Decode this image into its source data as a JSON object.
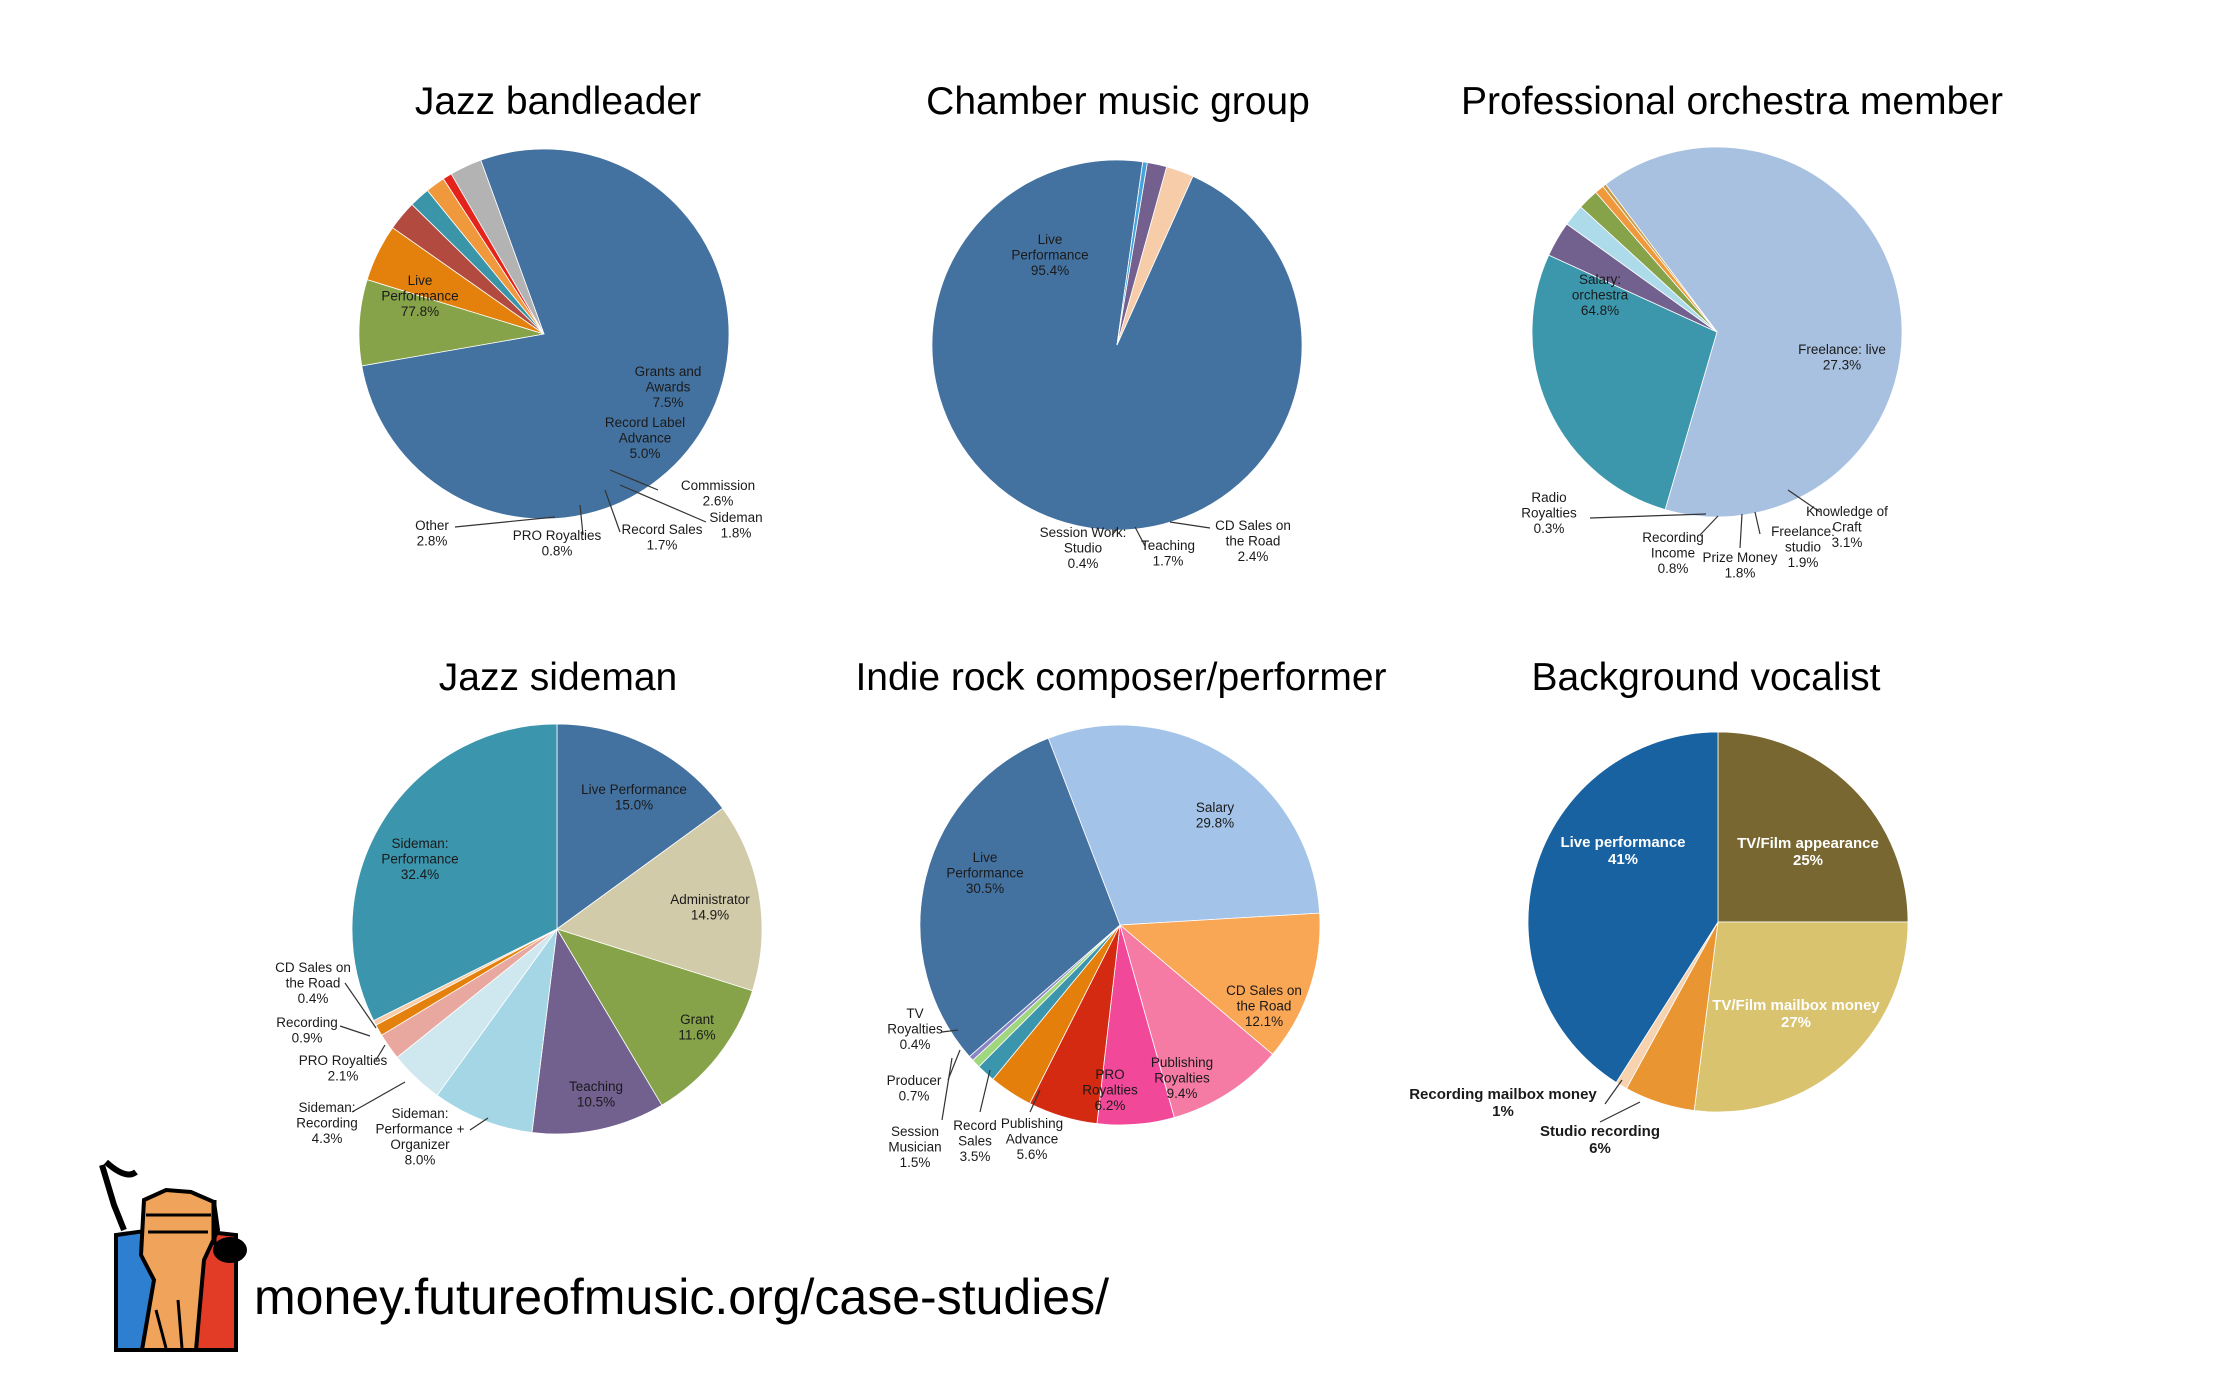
{
  "footer": {
    "url": "money.futureofmusic.org/case-studies/"
  },
  "logo": {
    "icon": "raised-fist-music-note-icon"
  },
  "chart_data": [
    {
      "type": "pie",
      "title": "Jazz bandleader",
      "slices": [
        {
          "label": "Live\nPerformance\n77.8%",
          "value": 77.8,
          "color": "#4472a0"
        },
        {
          "label": "Grants and\nAwards\n7.5%",
          "value": 7.5,
          "color": "#87a34a"
        },
        {
          "label": "Record Label\nAdvance\n5.0%",
          "value": 5.0,
          "color": "#e4810c"
        },
        {
          "label": "Commission\n2.6%",
          "value": 2.6,
          "color": "#b24a3f"
        },
        {
          "label": "Sideman\n1.8%",
          "value": 1.8,
          "color": "#3b95a9"
        },
        {
          "label": "Record Sales\n1.7%",
          "value": 1.7,
          "color": "#f0993c"
        },
        {
          "label": "PRO Royalties\n0.8%",
          "value": 0.8,
          "color": "#e3231c"
        },
        {
          "label": "Other\n2.8%",
          "value": 2.8,
          "color": "#b3b3b3"
        }
      ]
    },
    {
      "type": "pie",
      "title": "Chamber music group",
      "slices": [
        {
          "label": "Live\nPerformance\n95.4%",
          "value": 95.4,
          "color": "#4472a0"
        },
        {
          "label": "CD Sales on\nthe Road\n2.4%",
          "value": 2.4,
          "color": "#f7cda9"
        },
        {
          "label": "Teaching\n1.7%",
          "value": 1.7,
          "color": "#73608f"
        },
        {
          "label": "Session Work:\nStudio\n0.4%",
          "value": 0.4,
          "color": "#44a4dd"
        }
      ]
    },
    {
      "type": "pie",
      "title": "Professional orchestra member",
      "slices": [
        {
          "label": "Salary:\norchestra\n64.8%",
          "value": 64.8,
          "color": "#a8c1e0"
        },
        {
          "label": "Freelance: live\n27.3%",
          "value": 27.3,
          "color": "#3d97ac"
        },
        {
          "label": "Knowledge of\nCraft\n3.1%",
          "value": 3.1,
          "color": "#72608f"
        },
        {
          "label": "Freelance:\nstudio\n1.9%",
          "value": 1.9,
          "color": "#aedbe9"
        },
        {
          "label": "Prize Money\n1.8%",
          "value": 1.8,
          "color": "#87a34a"
        },
        {
          "label": "Recording\nIncome\n0.8%",
          "value": 0.8,
          "color": "#f0993c"
        },
        {
          "label": "Radio\nRoyalties\n0.3%",
          "value": 0.3,
          "color": "#c79b45"
        }
      ]
    },
    {
      "type": "pie",
      "title": "Jazz sideman",
      "slices": [
        {
          "label": "Live Performance\n15.0%",
          "value": 15.0,
          "color": "#4472a0"
        },
        {
          "label": "Administrator\n14.9%",
          "value": 14.9,
          "color": "#d2cbaa"
        },
        {
          "label": "Grant\n11.6%",
          "value": 11.6,
          "color": "#87a34a"
        },
        {
          "label": "Teaching\n10.5%",
          "value": 10.5,
          "color": "#72608f"
        },
        {
          "label": "Sideman:\nPerformance +\nOrganizer\n8.0%",
          "value": 8.0,
          "color": "#a5d6e5"
        },
        {
          "label": "Sideman:\nRecording\n4.3%",
          "value": 4.3,
          "color": "#cfe8ef"
        },
        {
          "label": "PRO Royalties\n2.1%",
          "value": 2.1,
          "color": "#e8a8a0"
        },
        {
          "label": "Recording\n0.9%",
          "value": 0.9,
          "color": "#e4810c"
        },
        {
          "label": "CD Sales on\nthe Road\n0.4%",
          "value": 0.4,
          "color": "#f7cda9"
        },
        {
          "label": "Sideman:\nPerformance\n32.4%",
          "value": 32.4,
          "color": "#3b95ad"
        }
      ]
    },
    {
      "type": "pie",
      "title": "Indie rock composer/performer",
      "slices": [
        {
          "label": "Salary\n29.8%",
          "value": 29.8,
          "color": "#a3c3e8"
        },
        {
          "label": "CD Sales on\nthe Road\n12.1%",
          "value": 12.1,
          "color": "#f9a655"
        },
        {
          "label": "Publishing\nRoyalties\n9.4%",
          "value": 9.4,
          "color": "#f57ba4"
        },
        {
          "label": "PRO\nRoyalties\n6.2%",
          "value": 6.2,
          "color": "#f2489a"
        },
        {
          "label": "Publishing\nAdvance\n5.6%",
          "value": 5.6,
          "color": "#d42a12"
        },
        {
          "label": "Record\nSales\n3.5%",
          "value": 3.5,
          "color": "#e57f0c"
        },
        {
          "label": "Session\nMusician\n1.5%",
          "value": 1.5,
          "color": "#3b95ad"
        },
        {
          "label": "Producer\n0.7%",
          "value": 0.7,
          "color": "#9fd67e"
        },
        {
          "label": "TV\nRoyalties\n0.4%",
          "value": 0.4,
          "color": "#8a86c4"
        },
        {
          "label": "Live\nPerformance\n30.5%",
          "value": 30.5,
          "color": "#4472a0"
        }
      ]
    },
    {
      "type": "pie",
      "title": "Background vocalist",
      "slices": [
        {
          "label": "TV/Film appearance\n25%",
          "value": 25,
          "color": "#786731"
        },
        {
          "label": "TV/Film mailbox money\n27%",
          "value": 27,
          "color": "#d9c36f"
        },
        {
          "label": "Studio recording\n6%",
          "value": 6,
          "color": "#e89532"
        },
        {
          "label": "Recording mailbox money\n1%",
          "value": 1,
          "color": "#f7d2ae"
        },
        {
          "label": "Live performance\n41%",
          "value": 41,
          "color": "#1962a2"
        }
      ]
    }
  ]
}
